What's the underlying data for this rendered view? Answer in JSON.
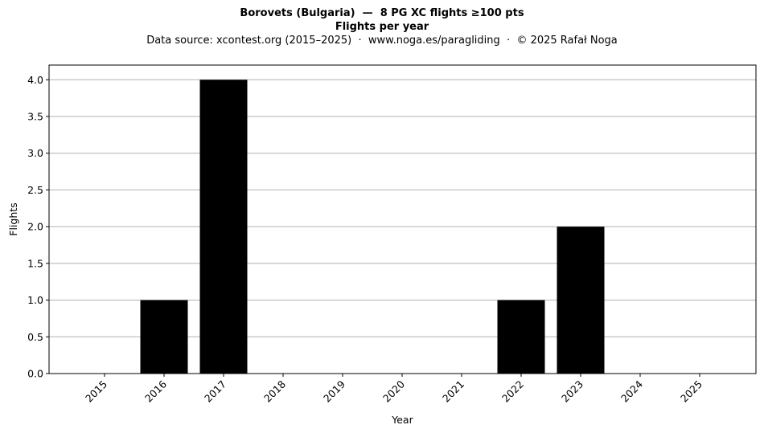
{
  "header": {
    "title": "Borovets (Bulgaria)  —  8 PG XC flights ≥100 pts",
    "subtitle": "Flights per year",
    "source": "Data source: xcontest.org (2015–2025)  ·  www.noga.es/paragliding  ·  © 2025 Rafał Noga"
  },
  "chart_data": {
    "type": "bar",
    "title": "Borovets (Bulgaria)  —  8 PG XC flights ≥100 pts",
    "subtitle": "Flights per year",
    "xlabel": "Year",
    "ylabel": "Flights",
    "categories": [
      "2015",
      "2016",
      "2017",
      "2018",
      "2019",
      "2020",
      "2021",
      "2022",
      "2023",
      "2024",
      "2025"
    ],
    "values": [
      0,
      1,
      4,
      0,
      0,
      0,
      0,
      1,
      2,
      0,
      0
    ],
    "ylim": [
      0,
      4.2
    ],
    "yticks": [
      "0.0",
      "0.5",
      "1.0",
      "1.5",
      "2.0",
      "2.5",
      "3.0",
      "3.5",
      "4.0"
    ],
    "grid": "horizontal",
    "bar_color": "#000000",
    "grid_color": "#b0b0b0"
  }
}
